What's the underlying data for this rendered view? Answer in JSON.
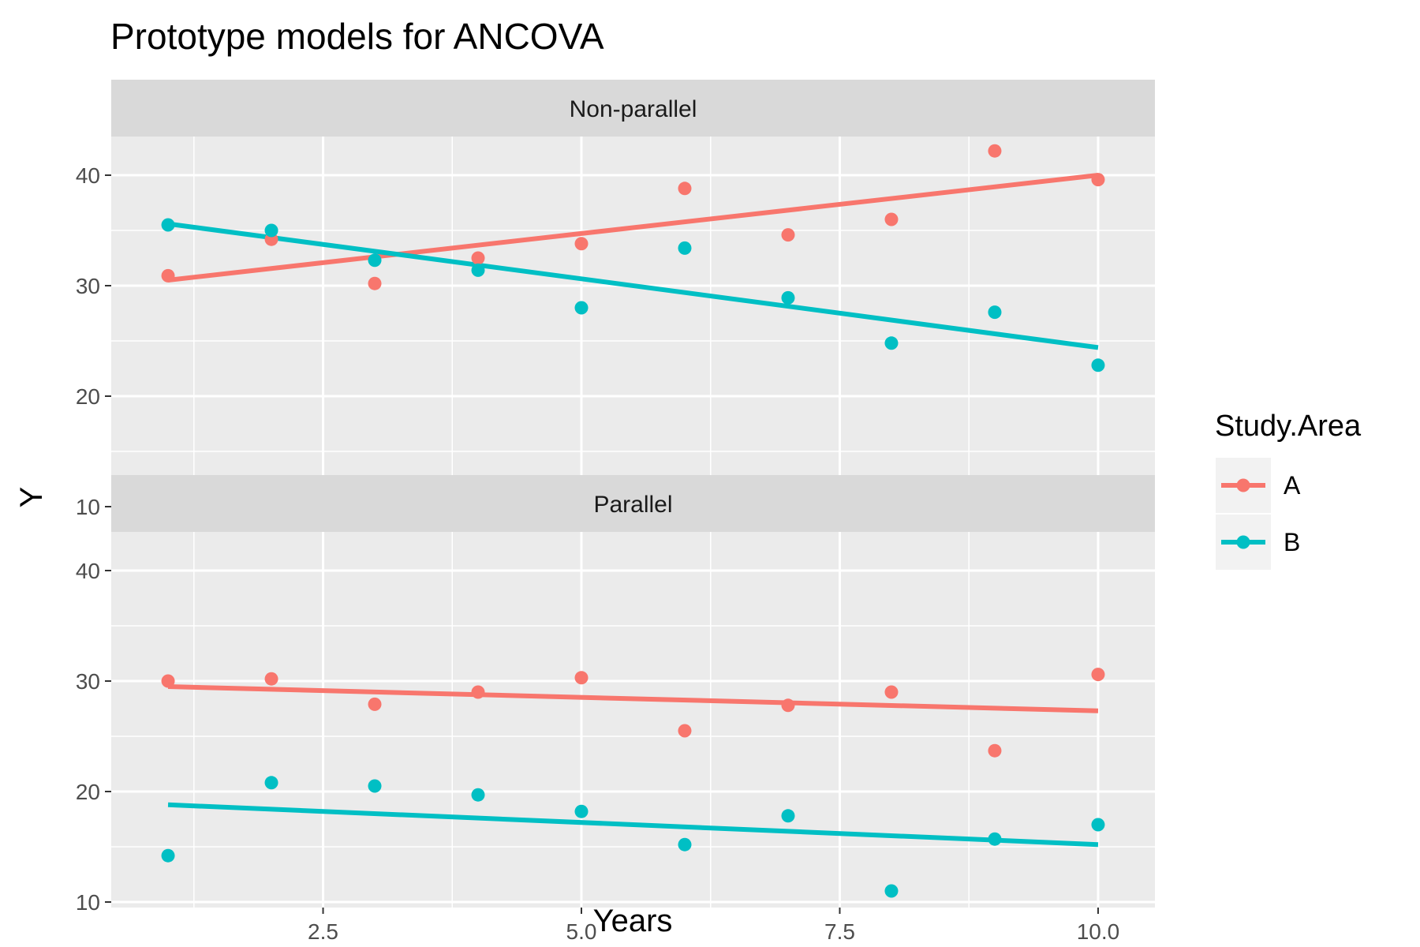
{
  "chart_data": {
    "type": "scatter",
    "title": "Prototype models for ANCOVA",
    "xlabel": "Years",
    "ylabel": "Y",
    "xlim": [
      0.45,
      10.55
    ],
    "ylim": [
      9.5,
      43.5
    ],
    "x_ticks": [
      2.5,
      5.0,
      7.5,
      10.0
    ],
    "x_tick_labels": [
      "2.5",
      "5.0",
      "7.5",
      "10.0"
    ],
    "y_ticks": [
      10,
      20,
      30,
      40
    ],
    "y_tick_labels": [
      "10",
      "20",
      "30",
      "40"
    ],
    "grid": true,
    "legend": {
      "title": "Study.Area",
      "position": "right",
      "entries": [
        "A",
        "B"
      ]
    },
    "colors": {
      "A": "#F8766D",
      "B": "#00BFC4"
    },
    "facets": [
      {
        "label": "Non-parallel",
        "series": [
          {
            "name": "A",
            "x": [
              1,
              2,
              3,
              4,
              5,
              6,
              7,
              8,
              9,
              10
            ],
            "y": [
              30.9,
              34.2,
              30.2,
              32.5,
              33.8,
              38.8,
              34.6,
              36.0,
              42.2,
              39.6
            ],
            "fit": [
              30.5,
              40.0
            ]
          },
          {
            "name": "B",
            "x": [
              1,
              2,
              3,
              4,
              5,
              6,
              7,
              8,
              9,
              10
            ],
            "y": [
              35.5,
              35.0,
              32.3,
              31.4,
              28.0,
              33.4,
              28.9,
              24.8,
              27.6,
              22.8
            ],
            "fit": [
              35.6,
              24.4
            ]
          }
        ]
      },
      {
        "label": "Parallel",
        "series": [
          {
            "name": "A",
            "x": [
              1,
              2,
              3,
              4,
              5,
              6,
              7,
              8,
              9,
              10
            ],
            "y": [
              30.0,
              30.2,
              27.9,
              29.0,
              30.3,
              25.5,
              27.8,
              29.0,
              23.7,
              30.6
            ],
            "fit": [
              29.5,
              27.3
            ]
          },
          {
            "name": "B",
            "x": [
              1,
              2,
              3,
              4,
              5,
              6,
              7,
              8,
              9,
              10
            ],
            "y": [
              14.2,
              20.8,
              20.5,
              19.7,
              18.2,
              15.2,
              17.8,
              11.0,
              15.7,
              17.0
            ],
            "fit": [
              18.8,
              15.2
            ]
          }
        ]
      }
    ]
  }
}
